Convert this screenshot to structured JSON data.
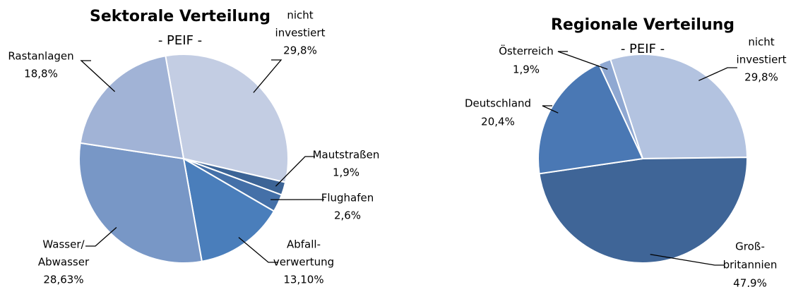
{
  "chart_data": [
    {
      "type": "pie",
      "title": "Sektorale Verteilung",
      "subtitle": "- PEIF -",
      "categories": [
        [
          "nicht",
          "investiert"
        ],
        [
          "Mautstraßen"
        ],
        [
          "Flughafen"
        ],
        [
          "Abfall-",
          "verwertung"
        ],
        [
          "Wasser/",
          "Abwasser"
        ],
        [
          "Rastanlagen"
        ]
      ],
      "values": [
        29.8,
        1.9,
        2.6,
        13.1,
        28.63,
        18.8
      ],
      "value_labels": [
        "29,8%",
        "1,9%",
        "2,6%",
        "13,10%",
        "28,63%",
        "18,8%"
      ],
      "colors": [
        "#c3cde3",
        "#3c6496",
        "#4470a8",
        "#4a7ebb",
        "#7897c6",
        "#a1b3d6"
      ]
    },
    {
      "type": "pie",
      "title": "Regionale Verteilung",
      "subtitle": "- PEIF -",
      "categories": [
        [
          "nicht",
          "investiert"
        ],
        [
          "Groß-",
          "britannien"
        ],
        [
          "Deutschland"
        ],
        [
          "Österreich"
        ]
      ],
      "values": [
        29.8,
        47.9,
        20.4,
        1.9
      ],
      "value_labels": [
        "29,8%",
        "47,9%",
        "20,4%",
        "1,9%"
      ],
      "colors": [
        "#b3c3e0",
        "#3f6597",
        "#4a78b4",
        "#8fa8d2"
      ]
    }
  ]
}
